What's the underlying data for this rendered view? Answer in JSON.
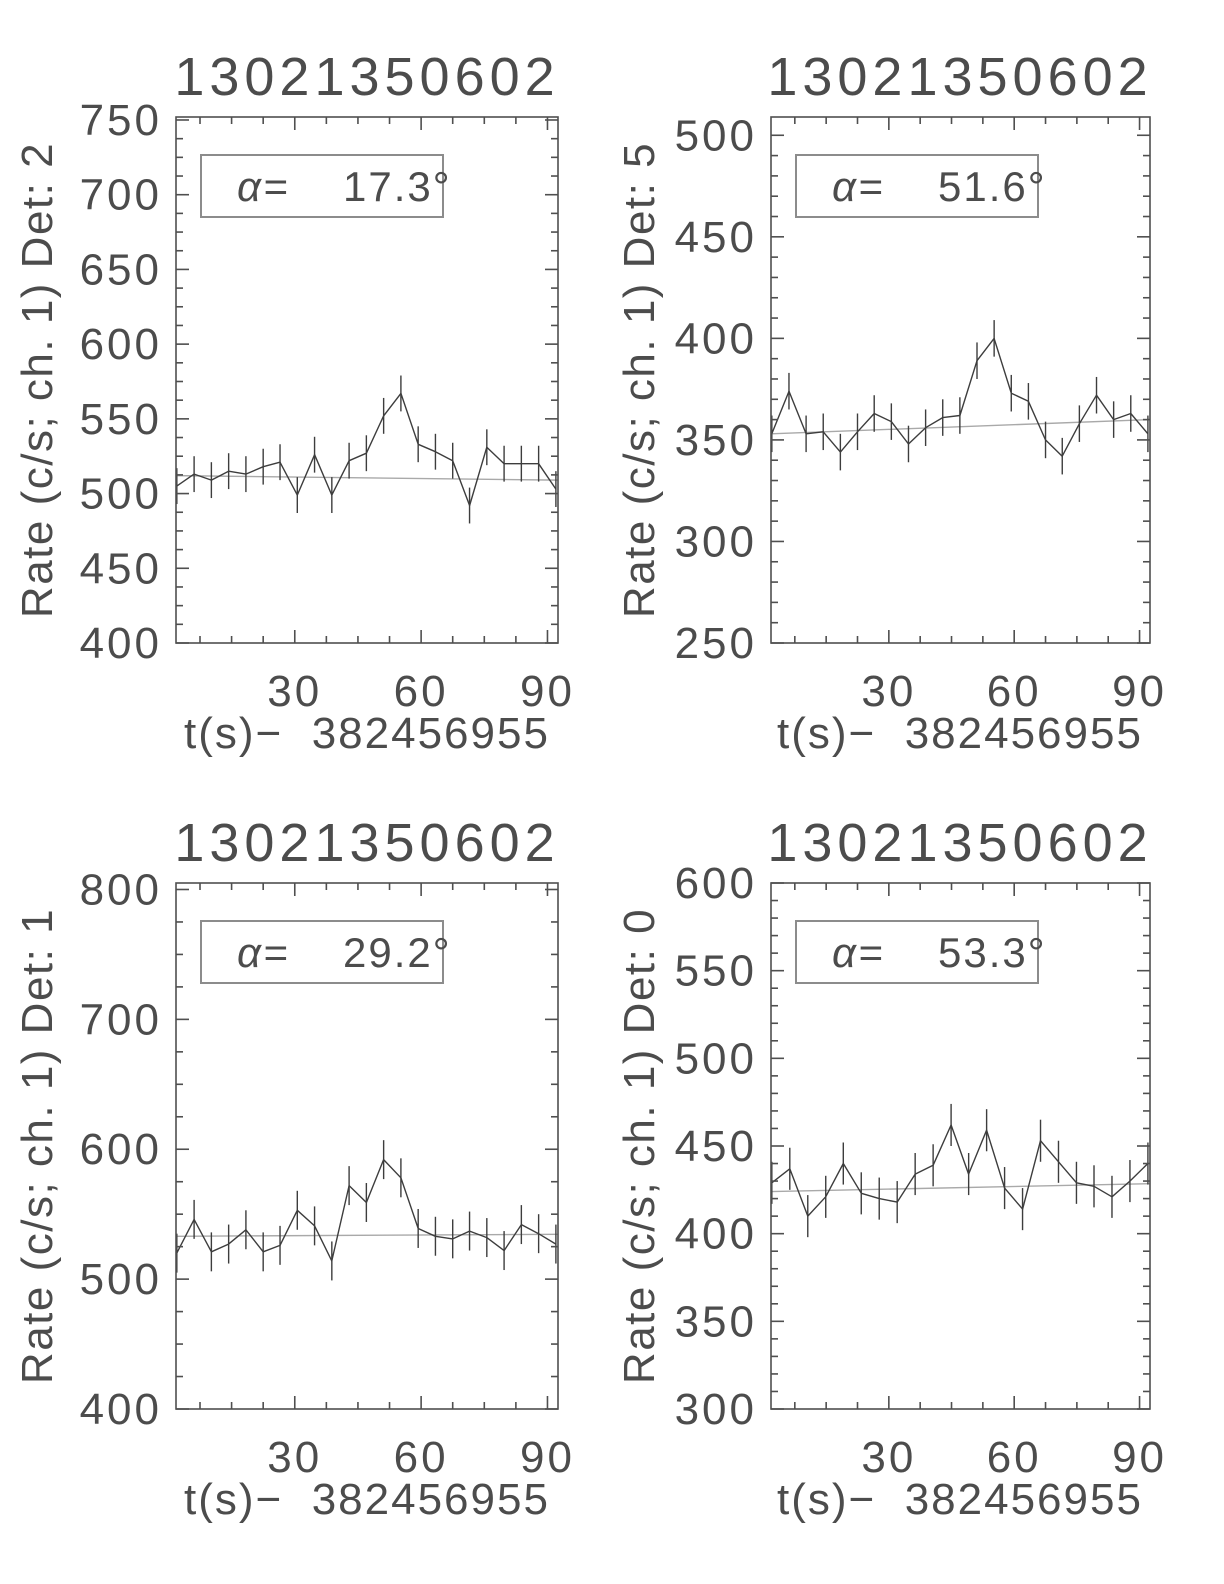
{
  "figure": {
    "layout": "2x2 grid of light-curve plots",
    "line_color": "#3d3d3d",
    "trend_color": "#a9a9a9",
    "frame_color": "#4f4f4f",
    "text_color": "#4c4c4c",
    "background": "#ffffff"
  },
  "chart_data": [
    {
      "type": "line",
      "title": "13021350602",
      "ylabel": "Rate (c/s; ch. 1) Det: 2",
      "xlabel": "t(s)−  382456955",
      "detector": 2,
      "alpha_symbol": "α=",
      "alpha_value": "17.3°",
      "xlim": [
        1.8,
        92.5
      ],
      "ylim": [
        400,
        752
      ],
      "xticks": [
        30,
        60,
        90
      ],
      "yticks": [
        400,
        450,
        500,
        550,
        600,
        650,
        700,
        750
      ],
      "x_minor_step": 7.5,
      "y_minor_step": 12.5,
      "grid": false,
      "legend": null,
      "yerr": 12,
      "trend_line": {
        "start": 512,
        "end": 509
      },
      "t": [
        2.0,
        6.1,
        10.2,
        14.3,
        18.4,
        22.5,
        26.5,
        30.6,
        34.7,
        38.8,
        42.9,
        47.0,
        51.1,
        55.2,
        59.3,
        63.4,
        67.5,
        71.5,
        75.6,
        79.7,
        83.8,
        87.9,
        92.0
      ],
      "rate": [
        505,
        513,
        509,
        515,
        513,
        518,
        521,
        499,
        526,
        499,
        522,
        527,
        552,
        567,
        533,
        528,
        522,
        492,
        531,
        520,
        520,
        520,
        503
      ]
    },
    {
      "type": "line",
      "title": "13021350602",
      "ylabel": "Rate (c/s; ch. 1) Det: 5",
      "xlabel": "t(s)−  382456955",
      "detector": 5,
      "alpha_symbol": "α=",
      "alpha_value": "51.6°",
      "xlim": [
        1.8,
        92.5
      ],
      "ylim": [
        250,
        509
      ],
      "xticks": [
        30,
        60,
        90
      ],
      "yticks": [
        250,
        300,
        350,
        400,
        450,
        500
      ],
      "x_minor_step": 7.5,
      "y_minor_step": 10,
      "grid": false,
      "legend": null,
      "yerr": 9,
      "trend_line": {
        "start": 353,
        "end": 360
      },
      "t": [
        2.0,
        6.1,
        10.2,
        14.3,
        18.4,
        22.5,
        26.5,
        30.6,
        34.7,
        38.8,
        42.9,
        47.0,
        51.1,
        55.2,
        59.3,
        63.4,
        67.5,
        71.5,
        75.6,
        79.7,
        83.8,
        87.9,
        92.0
      ],
      "rate": [
        353,
        374,
        353,
        354,
        344,
        354,
        363,
        359,
        348,
        356,
        361,
        362,
        389,
        400,
        373,
        369,
        350,
        342,
        358,
        372,
        360,
        363,
        353
      ]
    },
    {
      "type": "line",
      "title": "13021350602",
      "ylabel": "Rate (c/s; ch. 1) Det: 1",
      "xlabel": "t(s)−  382456955",
      "detector": 1,
      "alpha_symbol": "α=",
      "alpha_value": "29.2°",
      "xlim": [
        1.8,
        92.5
      ],
      "ylim": [
        400,
        805
      ],
      "xticks": [
        30,
        60,
        90
      ],
      "yticks": [
        400,
        500,
        600,
        700,
        800
      ],
      "x_minor_step": 7.5,
      "y_minor_step": 25,
      "grid": false,
      "legend": null,
      "yerr": 15,
      "trend_line": {
        "start": 533,
        "end": 534.5
      },
      "t": [
        2.0,
        6.1,
        10.2,
        14.3,
        18.4,
        22.5,
        26.5,
        30.6,
        34.7,
        38.8,
        42.9,
        47.0,
        51.1,
        55.2,
        59.3,
        63.4,
        67.5,
        71.5,
        75.6,
        79.7,
        83.8,
        87.9,
        92.0
      ],
      "rate": [
        520,
        546,
        521,
        527,
        538,
        521,
        526,
        553,
        541,
        514,
        572,
        559,
        592,
        578,
        539,
        533,
        531,
        537,
        532,
        522,
        542,
        535,
        527
      ]
    },
    {
      "type": "line",
      "title": "13021350602",
      "ylabel": "Rate (c/s; ch. 1) Det: 0",
      "xlabel": "t(s)−  382456955",
      "detector": 0,
      "alpha_symbol": "α=",
      "alpha_value": "53.3°",
      "xlim": [
        1.8,
        92.5
      ],
      "ylim": [
        300,
        600
      ],
      "xticks": [
        30,
        60,
        90
      ],
      "yticks": [
        300,
        350,
        400,
        450,
        500,
        550,
        600
      ],
      "x_minor_step": 7.5,
      "y_minor_step": 10,
      "grid": false,
      "legend": null,
      "yerr": 12,
      "trend_line": {
        "start": 424,
        "end": 428.5
      },
      "t": [
        2.0,
        6.3,
        10.6,
        14.9,
        19.1,
        23.4,
        27.7,
        32.0,
        36.3,
        40.6,
        44.9,
        49.1,
        53.4,
        57.7,
        62.0,
        66.3,
        70.6,
        74.9,
        79.1,
        83.4,
        87.7,
        92.0
      ],
      "rate": [
        429,
        437,
        410,
        421,
        440,
        423,
        420,
        418,
        434,
        439,
        462,
        434,
        459,
        426,
        414,
        453,
        441,
        429,
        427,
        421,
        430,
        440
      ]
    }
  ]
}
